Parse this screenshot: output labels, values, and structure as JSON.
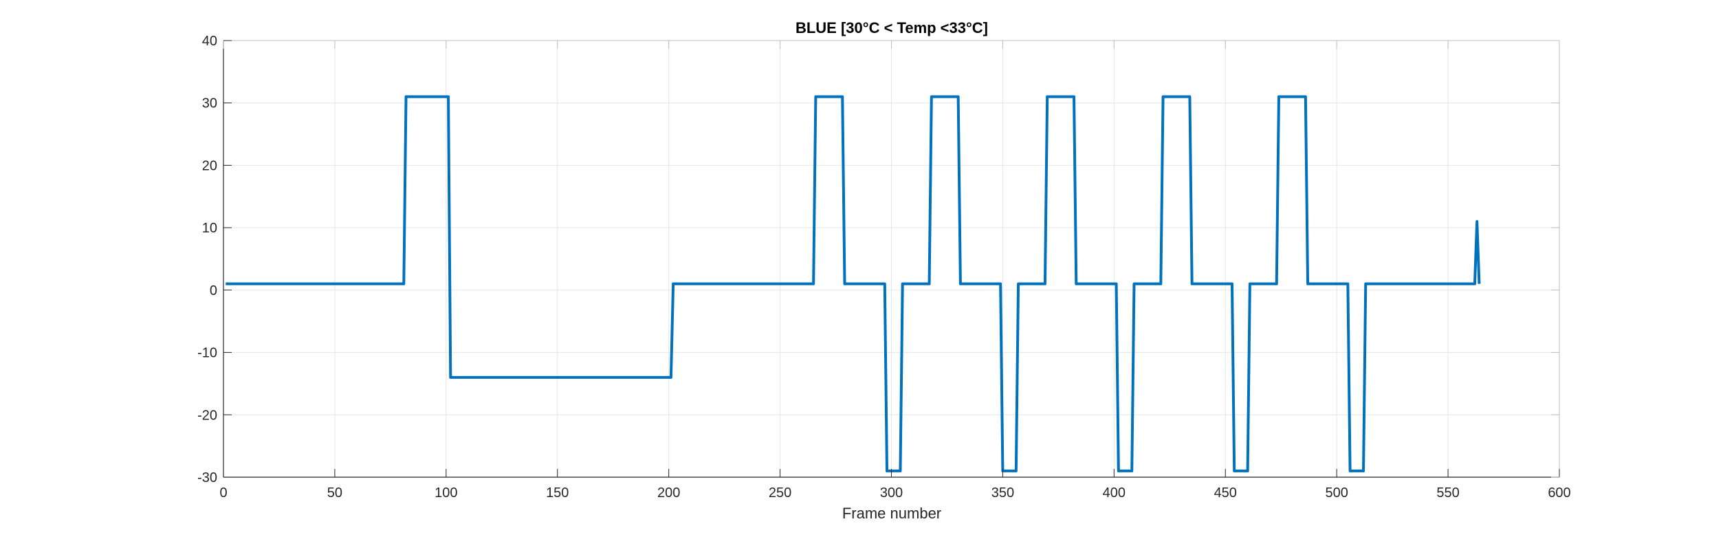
{
  "chart_data": {
    "type": "line",
    "title": "BLUE [30°C < Temp <33°C]",
    "xlabel": "Frame number",
    "ylabel": "",
    "xlim": [
      0,
      600
    ],
    "ylim": [
      -30,
      40
    ],
    "xticks": [
      0,
      50,
      100,
      150,
      200,
      250,
      300,
      350,
      400,
      450,
      500,
      550,
      600
    ],
    "yticks": [
      -30,
      -20,
      -10,
      0,
      10,
      20,
      30,
      40
    ],
    "grid": true,
    "series": [
      {
        "color": "#0072BD",
        "x": [
          1,
          81,
          82,
          101,
          102,
          201,
          202,
          265,
          266,
          278,
          279,
          297,
          298,
          304,
          305,
          317,
          318,
          330,
          331,
          349,
          350,
          356,
          357,
          369,
          370,
          382,
          383,
          401,
          402,
          408,
          409,
          421,
          422,
          434,
          435,
          453,
          454,
          460,
          461,
          473,
          474,
          486,
          487,
          505,
          506,
          512,
          513,
          562,
          563,
          564
        ],
        "y": [
          1,
          1,
          31,
          31,
          -14,
          -14,
          1,
          1,
          31,
          31,
          1,
          1,
          -29,
          -29,
          1,
          1,
          31,
          31,
          1,
          1,
          -29,
          -29,
          1,
          1,
          31,
          31,
          1,
          1,
          -29,
          -29,
          1,
          1,
          31,
          31,
          1,
          1,
          -29,
          -29,
          1,
          1,
          31,
          31,
          1,
          1,
          -29,
          -29,
          1,
          1,
          11,
          1
        ]
      }
    ]
  }
}
